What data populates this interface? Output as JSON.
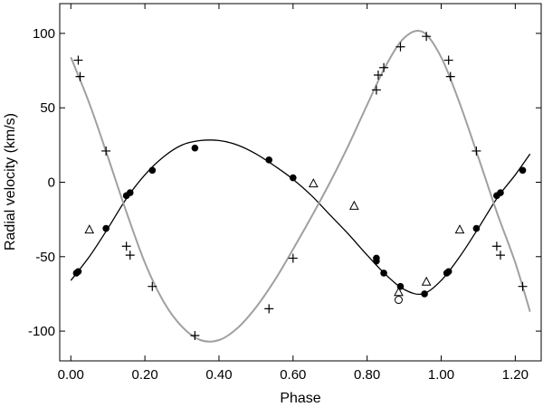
{
  "chart_data": {
    "type": "scatter",
    "title": "",
    "xlabel": "Phase",
    "ylabel": "Radial velocity (km/s)",
    "xlim": [
      -0.03,
      1.27
    ],
    "ylim": [
      -120,
      120
    ],
    "xticks": [
      0.0,
      0.2,
      0.4,
      0.6,
      0.8,
      1.0,
      1.2
    ],
    "xtick_labels": [
      "0.00",
      "0.20",
      "0.40",
      "0.60",
      "0.80",
      "1.00",
      "1.20"
    ],
    "yticks": [
      -100,
      -50,
      0,
      50,
      100
    ],
    "ytick_labels": [
      "-100",
      "-50",
      "0",
      "50",
      "100"
    ],
    "grid": false,
    "legend": "none",
    "series": [
      {
        "marker": "filled-circle",
        "color": "#000000",
        "points": [
          [
            0.015,
            -61
          ],
          [
            0.02,
            -60
          ],
          [
            0.095,
            -31
          ],
          [
            0.15,
            -9
          ],
          [
            0.16,
            -7
          ],
          [
            0.22,
            8
          ],
          [
            0.335,
            23
          ],
          [
            0.535,
            15
          ],
          [
            0.6,
            3
          ],
          [
            0.825,
            -51
          ],
          [
            0.825,
            -53
          ],
          [
            0.845,
            -61
          ],
          [
            0.89,
            -70
          ],
          [
            0.955,
            -75
          ],
          [
            1.015,
            -61
          ],
          [
            1.02,
            -60
          ],
          [
            1.095,
            -31
          ],
          [
            1.15,
            -9
          ],
          [
            1.16,
            -7
          ],
          [
            1.22,
            8
          ]
        ]
      },
      {
        "marker": "open-circle",
        "color": "#000000",
        "points": [
          [
            0.885,
            -79
          ]
        ]
      },
      {
        "marker": "plus",
        "color": "#000000",
        "points": [
          [
            0.02,
            82
          ],
          [
            0.025,
            71
          ],
          [
            0.095,
            21
          ],
          [
            0.15,
            -43
          ],
          [
            0.16,
            -49
          ],
          [
            0.22,
            -70
          ],
          [
            0.335,
            -103
          ],
          [
            0.535,
            -85
          ],
          [
            0.6,
            -51
          ],
          [
            0.825,
            62
          ],
          [
            0.83,
            72
          ],
          [
            0.845,
            77
          ],
          [
            0.89,
            91
          ],
          [
            0.96,
            98
          ],
          [
            1.02,
            82
          ],
          [
            1.025,
            71
          ],
          [
            1.095,
            21
          ],
          [
            1.15,
            -43
          ],
          [
            1.16,
            -49
          ],
          [
            1.22,
            -70
          ]
        ]
      },
      {
        "marker": "open-triangle",
        "color": "#000000",
        "points": [
          [
            0.05,
            -32
          ],
          [
            0.655,
            -1
          ],
          [
            0.765,
            -16
          ],
          [
            0.885,
            -74
          ],
          [
            0.96,
            -67
          ],
          [
            1.05,
            -32
          ]
        ]
      }
    ],
    "curves": [
      {
        "color": "#000000",
        "points": [
          [
            0.0,
            -66
          ],
          [
            0.05,
            -50
          ],
          [
            0.1,
            -31
          ],
          [
            0.15,
            -11
          ],
          [
            0.2,
            5
          ],
          [
            0.25,
            17
          ],
          [
            0.3,
            25
          ],
          [
            0.35,
            28
          ],
          [
            0.4,
            28
          ],
          [
            0.45,
            25
          ],
          [
            0.5,
            19
          ],
          [
            0.55,
            11
          ],
          [
            0.6,
            2
          ],
          [
            0.65,
            -9
          ],
          [
            0.7,
            -22
          ],
          [
            0.75,
            -35
          ],
          [
            0.8,
            -49
          ],
          [
            0.85,
            -62
          ],
          [
            0.9,
            -72
          ],
          [
            0.95,
            -75
          ],
          [
            1.0,
            -66
          ],
          [
            1.05,
            -50
          ],
          [
            1.1,
            -31
          ],
          [
            1.15,
            -11
          ],
          [
            1.2,
            5
          ],
          [
            1.24,
            19
          ]
        ]
      },
      {
        "color": "#a0a0a0",
        "points": [
          [
            0.0,
            84
          ],
          [
            0.05,
            53
          ],
          [
            0.1,
            17
          ],
          [
            0.15,
            -20
          ],
          [
            0.2,
            -54
          ],
          [
            0.25,
            -80
          ],
          [
            0.3,
            -97
          ],
          [
            0.35,
            -106
          ],
          [
            0.4,
            -106
          ],
          [
            0.45,
            -98
          ],
          [
            0.5,
            -84
          ],
          [
            0.55,
            -66
          ],
          [
            0.6,
            -45
          ],
          [
            0.65,
            -23
          ],
          [
            0.7,
            0
          ],
          [
            0.75,
            25
          ],
          [
            0.8,
            52
          ],
          [
            0.85,
            78
          ],
          [
            0.9,
            97
          ],
          [
            0.95,
            101
          ],
          [
            1.0,
            84
          ],
          [
            1.05,
            53
          ],
          [
            1.1,
            17
          ],
          [
            1.15,
            -20
          ],
          [
            1.2,
            -54
          ],
          [
            1.24,
            -87
          ]
        ]
      }
    ]
  }
}
